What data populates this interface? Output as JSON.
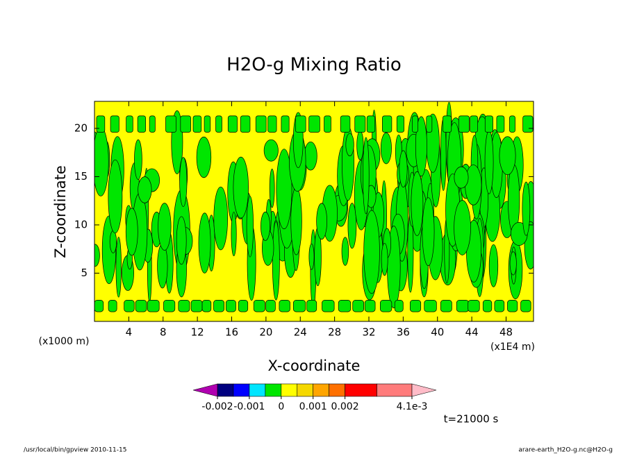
{
  "chart_data": {
    "type": "contour",
    "title": "H2O-g Mixing Ratio",
    "x_label": "X-coordinate",
    "y_label": "Z-coordinate",
    "x_unit": "(x1E4 m)",
    "y_unit": "(x1000 m)",
    "xlim": [
      0,
      51.2
    ],
    "xticks": [
      4,
      8,
      12,
      16,
      20,
      24,
      28,
      32,
      36,
      40,
      44,
      48
    ],
    "ylim": [
      0,
      22.8
    ],
    "yticks": [
      5,
      10,
      15,
      20
    ],
    "time_label": "t=21000 s",
    "colorbar": {
      "levels": [
        -0.002,
        -0.0015,
        -0.001,
        -0.0005,
        0,
        0.0005,
        0.001,
        0.0015,
        0.002,
        0.003,
        0.0041
      ],
      "colors": [
        "#00007f",
        "#0000ff",
        "#00e5ff",
        "#00e600",
        "#ffff00",
        "#f5d800",
        "#ffa500",
        "#ff7000",
        "#ff0000",
        "#ff7b7b"
      ],
      "under_color": "#b000b0",
      "over_color": "#ffbcc8",
      "ticks": [
        -0.002,
        -0.001,
        0,
        0.001,
        0.002,
        {
          "value": 0.0041,
          "label": "4.1e-3"
        }
      ]
    },
    "footer_left": "/usr/local/bin/gpview  2010-11-15",
    "footer_right": "arare-earth_H2O-g.nc@H2O-g"
  }
}
